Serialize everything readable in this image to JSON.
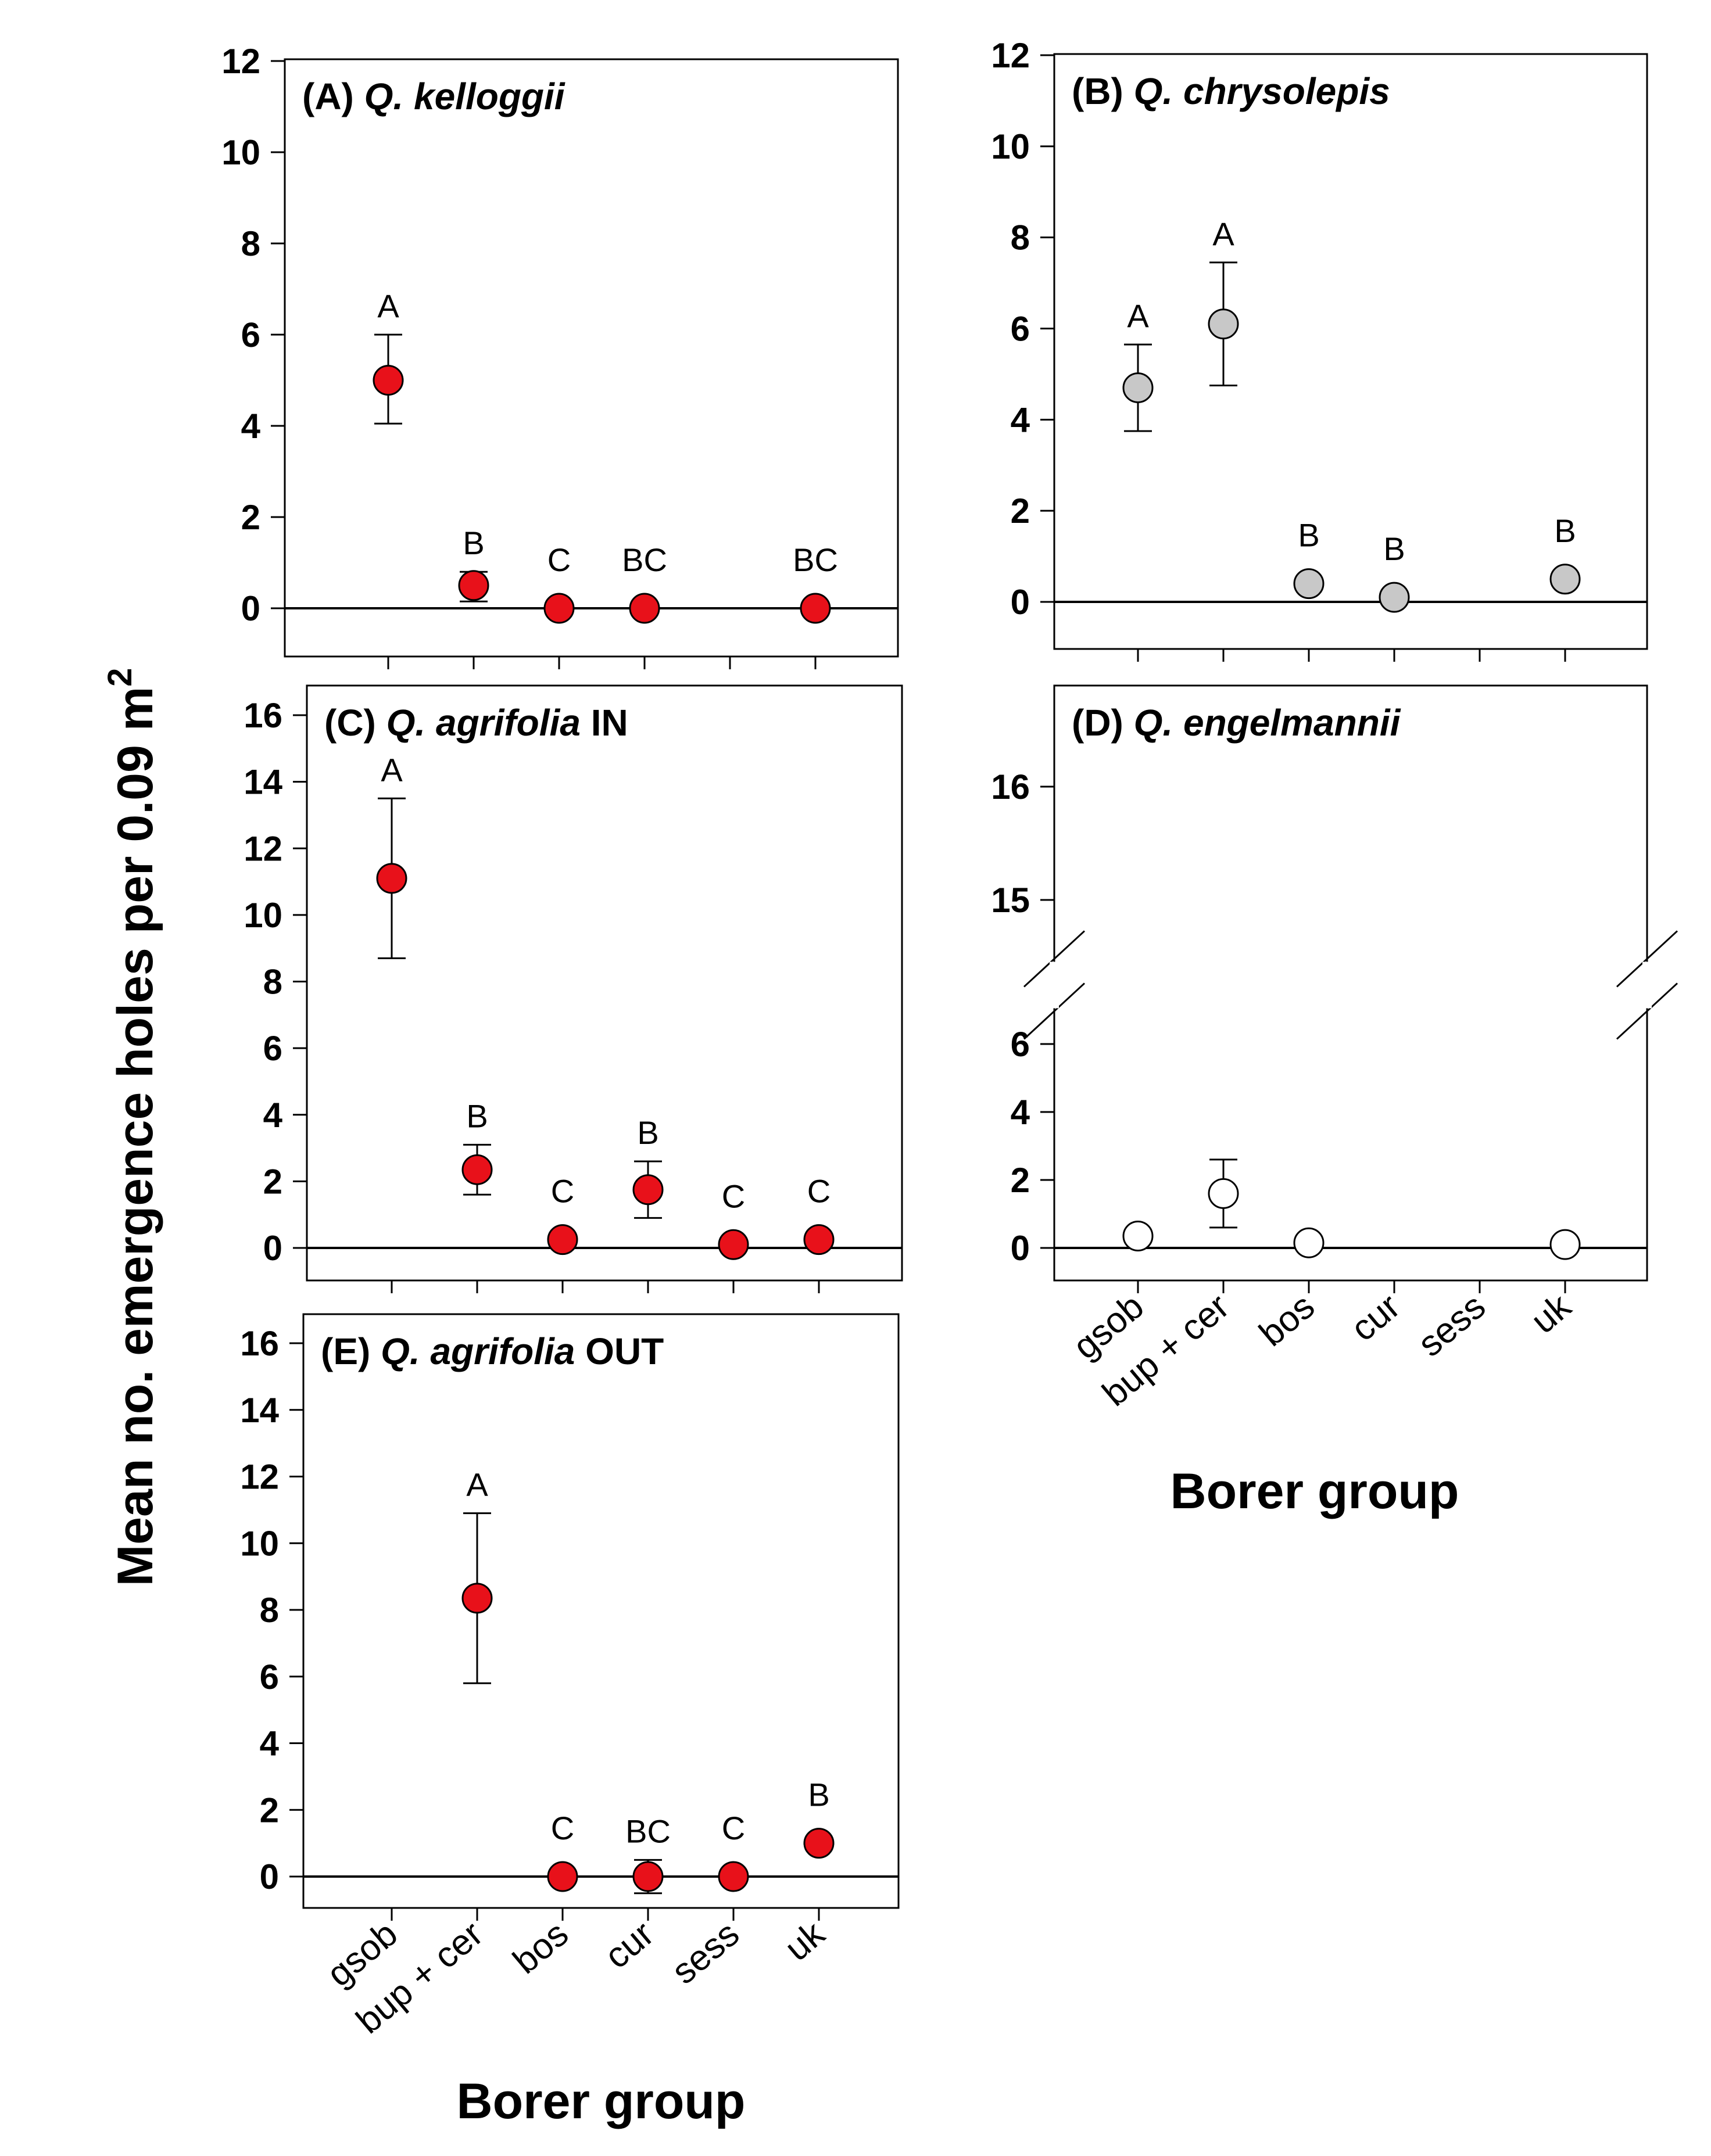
{
  "figure": {
    "ylabel": "Mean no. emergence holes per 0.09 m",
    "ylabel_sup": "2",
    "xlabel": "Borer group",
    "categories": [
      "gsob",
      "bup + cer",
      "bos",
      "cur",
      "sess",
      "uk"
    ]
  },
  "chart_data": [
    {
      "type": "scatter",
      "panel": "A",
      "title_prefix": "(A)",
      "title_species": "Q. kelloggii",
      "title_suffix": "",
      "marker_color": "#e8111a",
      "ylim": [
        -1,
        12
      ],
      "yticks": [
        0,
        2,
        4,
        6,
        8,
        10,
        12
      ],
      "points": [
        {
          "cat": "gsob",
          "mean": 5.0,
          "lo": 4.05,
          "hi": 6.0,
          "letter": "A"
        },
        {
          "cat": "bup + cer",
          "mean": 0.5,
          "lo": 0.15,
          "hi": 0.8,
          "letter": "B"
        },
        {
          "cat": "bos",
          "mean": 0.0,
          "lo": null,
          "hi": null,
          "letter": "C"
        },
        {
          "cat": "cur",
          "mean": 0.0,
          "lo": null,
          "hi": null,
          "letter": "BC"
        },
        {
          "cat": "uk",
          "mean": 0.0,
          "lo": null,
          "hi": null,
          "letter": "BC"
        }
      ]
    },
    {
      "type": "scatter",
      "panel": "B",
      "title_prefix": "(B)",
      "title_species": "Q. chrysolepis",
      "title_suffix": "",
      "marker_color": "#c8c8c8",
      "ylim": [
        -1,
        12
      ],
      "yticks": [
        0,
        2,
        4,
        6,
        8,
        10,
        12
      ],
      "points": [
        {
          "cat": "gsob",
          "mean": 4.7,
          "lo": 3.75,
          "hi": 5.65,
          "letter": "A"
        },
        {
          "cat": "bup + cer",
          "mean": 6.1,
          "lo": 4.75,
          "hi": 7.45,
          "letter": "A"
        },
        {
          "cat": "bos",
          "mean": 0.4,
          "lo": null,
          "hi": null,
          "letter": "B"
        },
        {
          "cat": "cur",
          "mean": 0.1,
          "lo": null,
          "hi": null,
          "letter": "B"
        },
        {
          "cat": "uk",
          "mean": 0.5,
          "lo": null,
          "hi": null,
          "letter": "B"
        }
      ]
    },
    {
      "type": "scatter",
      "panel": "C",
      "title_prefix": "(C)",
      "title_species": "Q. agrifolia",
      "title_suffix": "IN",
      "marker_color": "#e8111a",
      "ylim": [
        -1,
        17
      ],
      "yticks": [
        0,
        2,
        4,
        6,
        8,
        10,
        12,
        14,
        16
      ],
      "points": [
        {
          "cat": "gsob",
          "mean": 11.1,
          "lo": 8.7,
          "hi": 13.5,
          "letter": "A"
        },
        {
          "cat": "bup + cer",
          "mean": 2.35,
          "lo": 1.6,
          "hi": 3.1,
          "letter": "B"
        },
        {
          "cat": "bos",
          "mean": 0.25,
          "lo": null,
          "hi": null,
          "letter": "C"
        },
        {
          "cat": "cur",
          "mean": 1.75,
          "lo": 0.9,
          "hi": 2.6,
          "letter": "B"
        },
        {
          "cat": "sess",
          "mean": 0.1,
          "lo": null,
          "hi": null,
          "letter": "C"
        },
        {
          "cat": "uk",
          "mean": 0.25,
          "lo": null,
          "hi": null,
          "letter": "C"
        }
      ]
    },
    {
      "type": "scatter",
      "panel": "D",
      "title_prefix": "(D)",
      "title_species": "Q. engelmannii",
      "title_suffix": "",
      "marker_color": "#ffffff",
      "ylim": [
        -1,
        17
      ],
      "axis_break": [
        6.6,
        14.5
      ],
      "yticks": [
        0,
        2,
        4,
        6,
        15,
        16
      ],
      "points": [
        {
          "cat": "gsob",
          "mean": 0.35,
          "lo": null,
          "hi": null,
          "letter": ""
        },
        {
          "cat": "bup + cer",
          "mean": 1.6,
          "lo": 0.6,
          "hi": 2.6,
          "letter": ""
        },
        {
          "cat": "bos",
          "mean": 0.15,
          "lo": null,
          "hi": null,
          "letter": ""
        },
        {
          "cat": "uk",
          "mean": 0.1,
          "lo": null,
          "hi": null,
          "letter": ""
        }
      ]
    },
    {
      "type": "scatter",
      "panel": "E",
      "title_prefix": "(E)",
      "title_species": "Q. agrifolia",
      "title_suffix": "OUT",
      "marker_color": "#e8111a",
      "ylim": [
        -1,
        17
      ],
      "yticks": [
        0,
        2,
        4,
        6,
        8,
        10,
        12,
        14,
        16
      ],
      "points": [
        {
          "cat": "bup + cer",
          "mean": 8.35,
          "lo": 5.8,
          "hi": 10.9,
          "letter": "A"
        },
        {
          "cat": "bos",
          "mean": 0.0,
          "lo": null,
          "hi": null,
          "letter": "C"
        },
        {
          "cat": "cur",
          "mean": 0.0,
          "lo": -0.5,
          "hi": 0.5,
          "letter": "BC"
        },
        {
          "cat": "sess",
          "mean": 0.0,
          "lo": null,
          "hi": null,
          "letter": "C"
        },
        {
          "cat": "uk",
          "mean": 1.0,
          "lo": null,
          "hi": null,
          "letter": "B"
        }
      ]
    }
  ]
}
